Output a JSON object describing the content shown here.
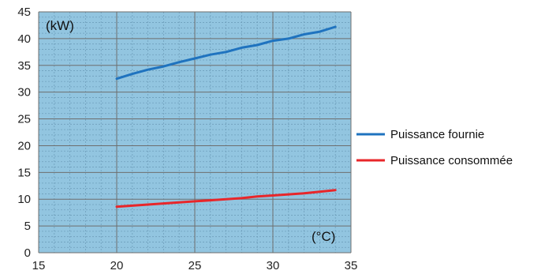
{
  "chart_data": {
    "type": "line",
    "title": "",
    "xlabel": "(°C)",
    "ylabel": "(kW)",
    "xlim": [
      15,
      35
    ],
    "ylim": [
      0,
      45
    ],
    "xticks": [
      15,
      20,
      25,
      30,
      35
    ],
    "yticks": [
      0,
      5,
      10,
      15,
      20,
      25,
      30,
      35,
      40,
      45
    ],
    "grid": true,
    "minor_grid": true,
    "legend_position": "right",
    "plot_background": "#92c5e0",
    "series": [
      {
        "name": "Puissance fournie",
        "color": "#1f73bf",
        "x": [
          20,
          21,
          22,
          23,
          24,
          25,
          26,
          27,
          28,
          29,
          30,
          31,
          32,
          33,
          34
        ],
        "y": [
          32.5,
          33.4,
          34.2,
          34.8,
          35.6,
          36.3,
          37.0,
          37.5,
          38.3,
          38.8,
          39.6,
          40.0,
          40.8,
          41.3,
          42.2
        ]
      },
      {
        "name": "Puissance consommée",
        "color": "#e8262a",
        "x": [
          20,
          21,
          22,
          23,
          24,
          25,
          26,
          27,
          28,
          29,
          30,
          31,
          32,
          33,
          34
        ],
        "y": [
          8.6,
          8.8,
          9.0,
          9.2,
          9.4,
          9.6,
          9.8,
          10.0,
          10.2,
          10.5,
          10.7,
          10.9,
          11.1,
          11.4,
          11.7
        ]
      }
    ]
  }
}
